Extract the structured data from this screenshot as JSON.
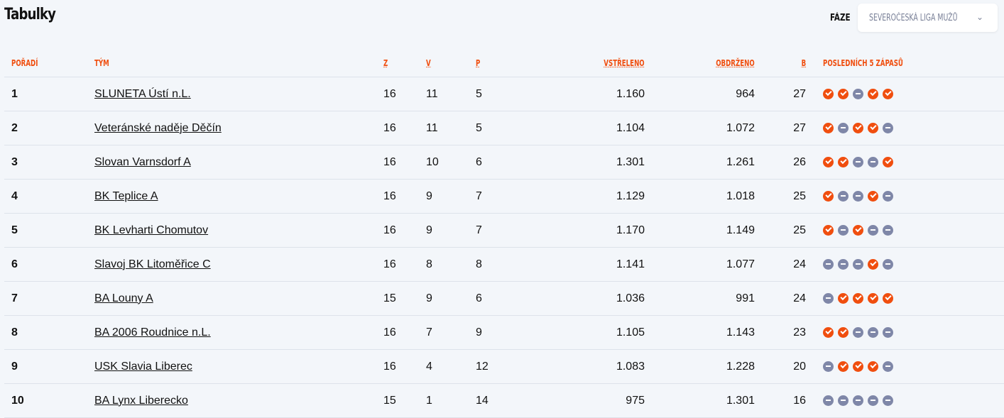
{
  "title": "Tabulky",
  "phase": {
    "label": "FÁZE",
    "value": "SEVEROČESKÁ LIGA MUŽŮ"
  },
  "colors": {
    "accent": "#f04e0f",
    "loss": "#7f87a8"
  },
  "columns": [
    "POŘADÍ",
    "TÝM",
    "Z",
    "V",
    "P",
    "VSTŘELENO",
    "OBDRŽENO",
    "B",
    "POSLEDNÍCH 5 ZÁPASŮ"
  ],
  "rows": [
    {
      "rank": "1",
      "team": "SLUNETA Ústí n.L.",
      "z": "16",
      "v": "11",
      "p": "5",
      "scored": "1.160",
      "conceded": "964",
      "b": "27",
      "form": [
        "W",
        "W",
        "L",
        "W",
        "W"
      ]
    },
    {
      "rank": "2",
      "team": "Veteránské naděje Děčín",
      "z": "16",
      "v": "11",
      "p": "5",
      "scored": "1.104",
      "conceded": "1.072",
      "b": "27",
      "form": [
        "W",
        "L",
        "W",
        "W",
        "L"
      ]
    },
    {
      "rank": "3",
      "team": "Slovan Varnsdorf A",
      "z": "16",
      "v": "10",
      "p": "6",
      "scored": "1.301",
      "conceded": "1.261",
      "b": "26",
      "form": [
        "W",
        "W",
        "L",
        "L",
        "W"
      ]
    },
    {
      "rank": "4",
      "team": "BK Teplice A",
      "z": "16",
      "v": "9",
      "p": "7",
      "scored": "1.129",
      "conceded": "1.018",
      "b": "25",
      "form": [
        "W",
        "L",
        "L",
        "W",
        "L"
      ]
    },
    {
      "rank": "5",
      "team": "BK Levharti Chomutov",
      "z": "16",
      "v": "9",
      "p": "7",
      "scored": "1.170",
      "conceded": "1.149",
      "b": "25",
      "form": [
        "W",
        "L",
        "W",
        "L",
        "L"
      ]
    },
    {
      "rank": "6",
      "team": "Slavoj BK Litoměřice C",
      "z": "16",
      "v": "8",
      "p": "8",
      "scored": "1.141",
      "conceded": "1.077",
      "b": "24",
      "form": [
        "L",
        "L",
        "L",
        "W",
        "L"
      ]
    },
    {
      "rank": "7",
      "team": "BA Louny A",
      "z": "15",
      "v": "9",
      "p": "6",
      "scored": "1.036",
      "conceded": "991",
      "b": "24",
      "form": [
        "L",
        "W",
        "W",
        "W",
        "W"
      ]
    },
    {
      "rank": "8",
      "team": "BA 2006 Roudnice n.L.",
      "z": "16",
      "v": "7",
      "p": "9",
      "scored": "1.105",
      "conceded": "1.143",
      "b": "23",
      "form": [
        "W",
        "W",
        "L",
        "L",
        "L"
      ]
    },
    {
      "rank": "9",
      "team": "USK Slavia Liberec",
      "z": "16",
      "v": "4",
      "p": "12",
      "scored": "1.083",
      "conceded": "1.228",
      "b": "20",
      "form": [
        "L",
        "W",
        "W",
        "W",
        "L"
      ]
    },
    {
      "rank": "10",
      "team": "BA Lynx Liberecko",
      "z": "15",
      "v": "1",
      "p": "14",
      "scored": "975",
      "conceded": "1.301",
      "b": "16",
      "form": [
        "L",
        "L",
        "L",
        "L",
        "L"
      ]
    }
  ]
}
